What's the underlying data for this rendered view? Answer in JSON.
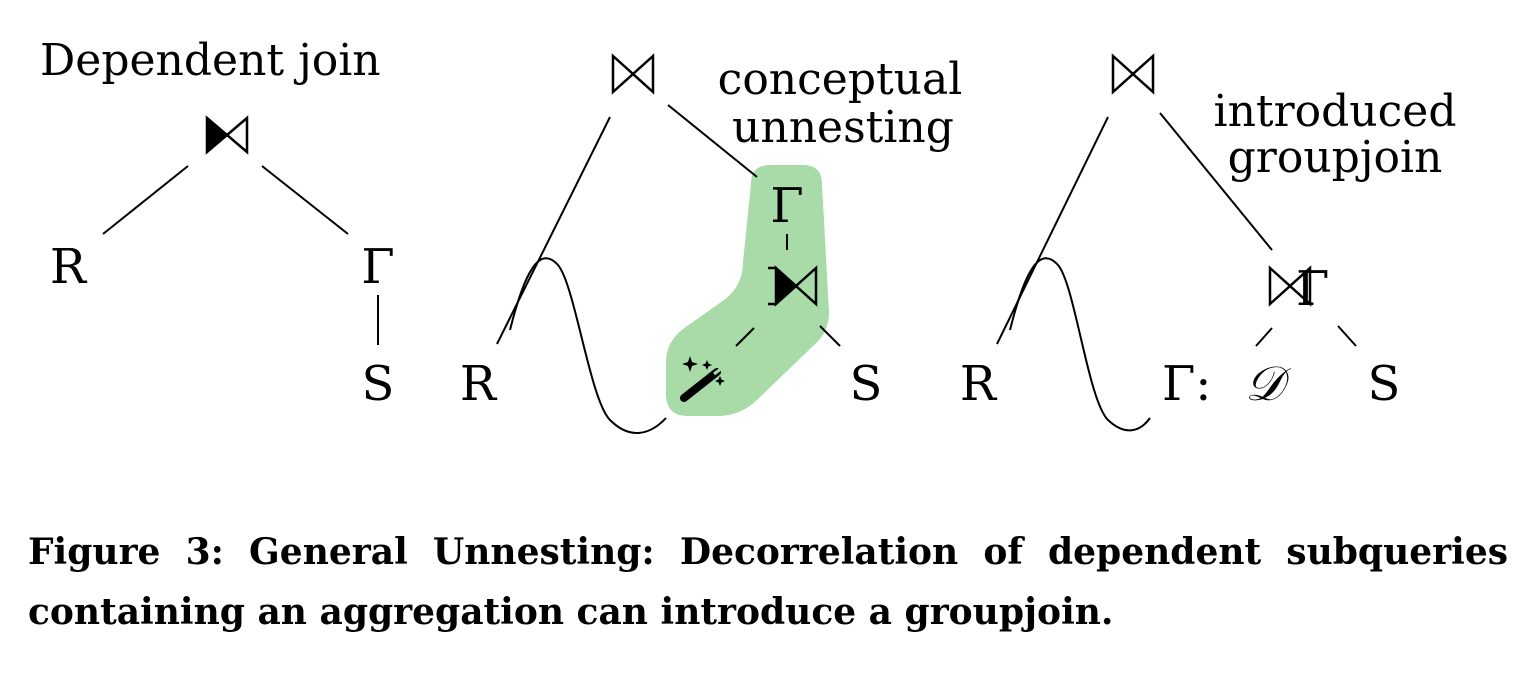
{
  "panels": {
    "left": {
      "title": "Dependent join",
      "nodes": {
        "r": "R",
        "gamma": "Γ",
        "s": "S"
      }
    },
    "middle": {
      "title_line1": "conceptual",
      "title_line2": "unnesting",
      "nodes": {
        "r": "R",
        "gamma": "Γ",
        "s": "S"
      }
    },
    "right": {
      "title_line1": "introduced",
      "title_line2": "groupjoin",
      "nodes": {
        "r": "R",
        "gamma_d": "Γ: ",
        "d": "𝒟",
        "s": "S",
        "groupjoin": "⋈Γ"
      }
    }
  },
  "colors": {
    "highlight": "#a8dba8",
    "ink": "#000000"
  },
  "icons": {
    "join": "bowtie-icon",
    "dependent_join": "dependent-join-icon",
    "magic": "magic-wand-icon"
  },
  "caption": {
    "label": "Figure 3:",
    "text": "General Unnesting: Decorrelation of dependent subqueries containing an aggregation can introduce a groupjoin."
  }
}
